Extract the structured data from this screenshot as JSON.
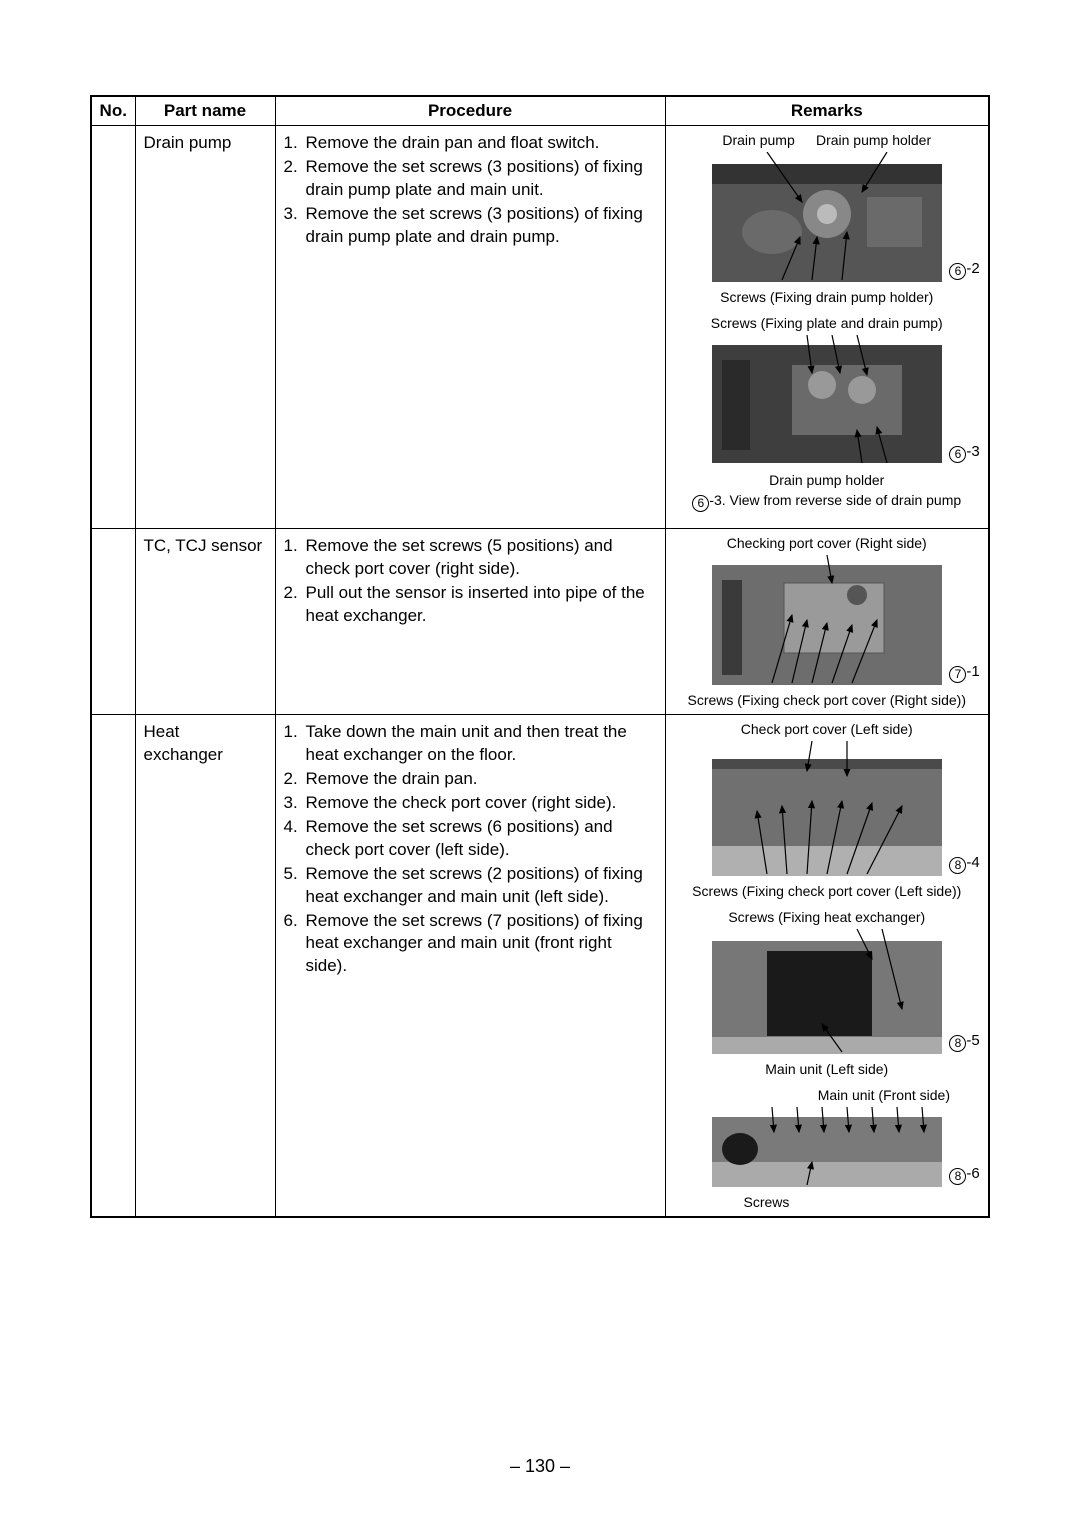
{
  "pageNumber": "– 130 –",
  "headers": {
    "no": "No.",
    "part": "Part name",
    "proc": "Procedure",
    "rem": "Remarks"
  },
  "rows": [
    {
      "part": "Drain pump",
      "steps": [
        {
          "n": "1.",
          "t": "Remove the drain pan and float switch."
        },
        {
          "n": "2.",
          "t": "Remove the set screws (3 positions) of fixing drain pump plate and main unit."
        },
        {
          "n": "3.",
          "t": "Remove the set screws (3 positions) of fixing drain pump plate and drain pump."
        }
      ],
      "remarks": {
        "fig1_top_labels": [
          "Drain pump",
          "Drain pump holder"
        ],
        "fig1_tag": {
          "circ": "6",
          "suf": "-2"
        },
        "fig1_caption": "Screws (Fixing drain pump holder)",
        "fig2_top": "Screws (Fixing plate and drain pump)",
        "fig2_tag": {
          "circ": "6",
          "suf": "-3"
        },
        "fig2_caption1": "Drain pump holder",
        "fig2_caption2_pre": "6",
        "fig2_caption2": "-3. View from reverse side of drain pump"
      }
    },
    {
      "part": "TC, TCJ sensor",
      "steps": [
        {
          "n": "1.",
          "t": "Remove the set screws (5 positions) and check port cover (right side)."
        },
        {
          "n": "2.",
          "t": "Pull out the sensor is inserted into pipe of the heat exchanger."
        }
      ],
      "remarks": {
        "fig_top": "Checking port cover (Right side)",
        "fig_tag": {
          "circ": "7",
          "suf": "-1"
        },
        "fig_caption": "Screws (Fixing check port cover (Right side))"
      }
    },
    {
      "part": "Heat exchanger",
      "steps": [
        {
          "n": "1.",
          "t": "Take down the main unit and then treat the heat exchanger on the floor."
        },
        {
          "n": "2.",
          "t": "Remove the drain pan."
        },
        {
          "n": "3.",
          "t": "Remove the check port cover (right side)."
        },
        {
          "n": "4.",
          "t": "Remove the set screws (6 positions) and check port cover (left side)."
        },
        {
          "n": "5.",
          "t": "Remove the set screws (2 positions) of fixing heat exchanger and main unit (left side)."
        },
        {
          "n": "6.",
          "t": "Remove the set screws (7 positions) of fixing heat exchanger and main unit (front right side)."
        }
      ],
      "remarks": {
        "fig1_top": "Check port cover (Left side)",
        "fig1_tag": {
          "circ": "8",
          "suf": "-4"
        },
        "fig1_caption": "Screws (Fixing check port cover (Left side))",
        "fig2_top": "Screws (Fixing heat exchanger)",
        "fig2_tag": {
          "circ": "8",
          "suf": "-5"
        },
        "fig2_caption": "Main unit (Left side)",
        "fig3_top": "Main unit (Front side)",
        "fig3_tag": {
          "circ": "8",
          "suf": "-6"
        },
        "fig3_caption": "Screws"
      }
    }
  ],
  "style": {
    "arrow_stroke": "#000000",
    "arrow_width": 1.2,
    "photo_dark": "#4a4a4a",
    "photo_mid": "#6f6f6f",
    "photo_light": "#9a9a9a",
    "photo_highlight": "#c8c8c8"
  }
}
